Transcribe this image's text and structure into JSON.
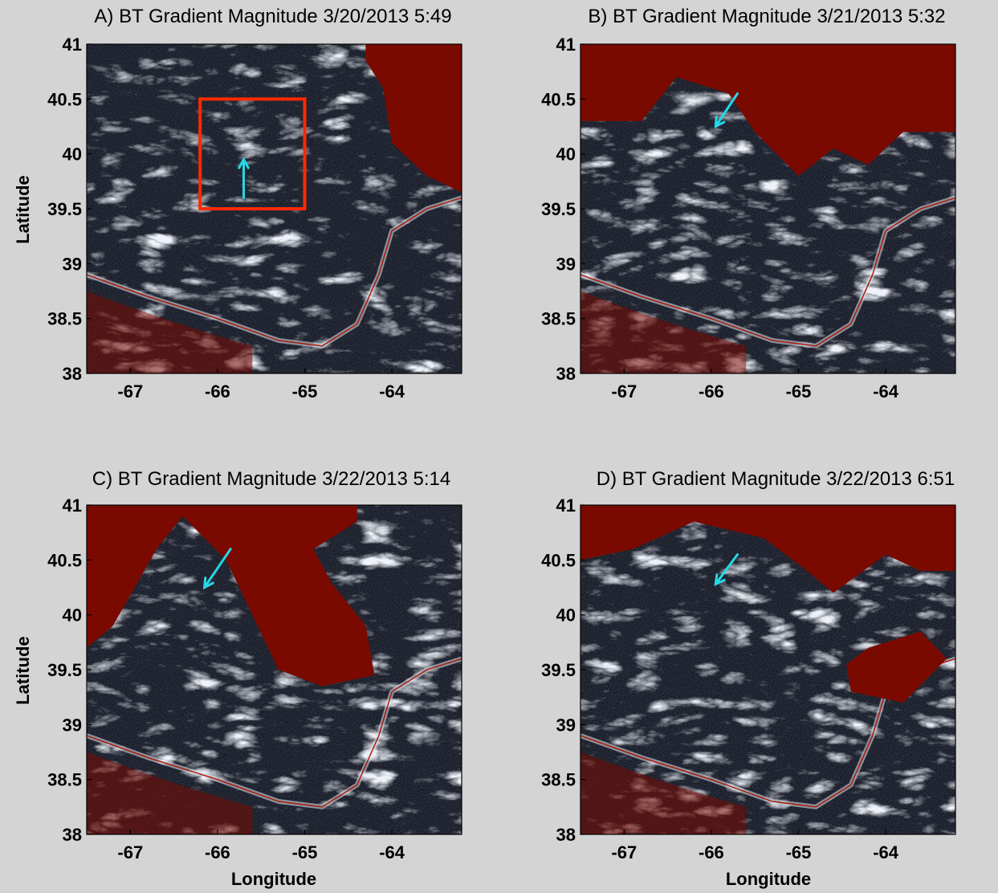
{
  "figure": {
    "background": "#d4d4d4",
    "colors": {
      "land_mask": "#7a0a00",
      "gradient_dark": "#161a26",
      "gradient_mid": "#5a6478",
      "gradient_light": "#dde6f2",
      "front_contour": "#b01400",
      "box_outline": "#ff2a00",
      "arrow": "#27d8e6"
    }
  },
  "chart_data": [
    {
      "type": "heatmap",
      "panel": "A",
      "title": "A) BT Gradient Magnitude 3/20/2013 5:49",
      "xlabel": "",
      "ylabel": "Latitude",
      "xlim": [
        -67.5,
        -63.2
      ],
      "ylim": [
        38,
        41
      ],
      "xticks": [
        -67,
        -66,
        -65,
        -64
      ],
      "yticks": [
        38,
        38.5,
        39,
        39.5,
        40,
        40.5,
        41
      ],
      "land_polygon": [
        [
          -66.3,
          41
        ],
        [
          -64.3,
          41
        ],
        [
          -64.3,
          40.85
        ],
        [
          -64.1,
          40.6
        ],
        [
          -64.0,
          40.1
        ],
        [
          -63.6,
          39.8
        ],
        [
          -63.2,
          39.65
        ],
        [
          -63.2,
          41
        ]
      ],
      "region_box": {
        "lon": [
          -66.2,
          -65.0
        ],
        "lat": [
          39.5,
          40.5
        ]
      },
      "arrow": {
        "from": [
          -65.7,
          39.6
        ],
        "to": [
          -65.7,
          39.95
        ]
      }
    },
    {
      "type": "heatmap",
      "panel": "B",
      "title": "B) BT Gradient Magnitude 3/21/2013 5:32",
      "xlabel": "",
      "ylabel": "",
      "xlim": [
        -67.5,
        -63.2
      ],
      "ylim": [
        38,
        41
      ],
      "xticks": [
        -67,
        -66,
        -65,
        -64
      ],
      "yticks": [
        38,
        38.5,
        39,
        39.5,
        40,
        40.5,
        41
      ],
      "land_polygon": [
        [
          -67.5,
          41
        ],
        [
          -63.2,
          41
        ],
        [
          -63.2,
          40.2
        ],
        [
          -63.8,
          40.2
        ],
        [
          -64.2,
          39.9
        ],
        [
          -64.6,
          40.05
        ],
        [
          -65.0,
          39.8
        ],
        [
          -65.5,
          40.2
        ],
        [
          -65.8,
          40.55
        ],
        [
          -66.4,
          40.7
        ],
        [
          -66.8,
          40.3
        ],
        [
          -67.5,
          40.3
        ]
      ],
      "arrow": {
        "from": [
          -65.7,
          40.55
        ],
        "to": [
          -65.95,
          40.25
        ]
      }
    },
    {
      "type": "heatmap",
      "panel": "C",
      "title": "C) BT Gradient Magnitude 3/22/2013 5:14",
      "xlabel": "Longitude",
      "ylabel": "Latitude",
      "xlim": [
        -67.5,
        -63.2
      ],
      "ylim": [
        38,
        41
      ],
      "xticks": [
        -67,
        -66,
        -65,
        -64
      ],
      "yticks": [
        38,
        38.5,
        39,
        39.5,
        40,
        40.5,
        41
      ],
      "land_polygon": [
        [
          -67.5,
          41
        ],
        [
          -64.4,
          41
        ],
        [
          -64.4,
          40.85
        ],
        [
          -64.9,
          40.6
        ],
        [
          -64.7,
          40.3
        ],
        [
          -64.3,
          39.9
        ],
        [
          -64.2,
          39.45
        ],
        [
          -64.8,
          39.35
        ],
        [
          -65.3,
          39.5
        ],
        [
          -65.6,
          40.0
        ],
        [
          -65.9,
          40.5
        ],
        [
          -66.4,
          40.9
        ],
        [
          -66.7,
          40.6
        ],
        [
          -67.2,
          39.9
        ],
        [
          -67.5,
          39.7
        ]
      ],
      "arrow": {
        "from": [
          -65.85,
          40.6
        ],
        "to": [
          -66.15,
          40.25
        ]
      }
    },
    {
      "type": "heatmap",
      "panel": "D",
      "title": "D) BT Gradient Magnitude 3/22/2013 6:51",
      "xlabel": "Longitude",
      "ylabel": "",
      "xlim": [
        -67.5,
        -63.2
      ],
      "ylim": [
        38,
        41
      ],
      "xticks": [
        -67,
        -66,
        -65,
        -64
      ],
      "yticks": [
        38,
        38.5,
        39,
        39.5,
        40,
        40.5,
        41
      ],
      "land_polygon": [
        [
          -67.5,
          41
        ],
        [
          -63.2,
          41
        ],
        [
          -63.2,
          40.4
        ],
        [
          -63.6,
          40.4
        ],
        [
          -64.0,
          40.55
        ],
        [
          -64.6,
          40.2
        ],
        [
          -64.9,
          40.4
        ],
        [
          -65.4,
          40.7
        ],
        [
          -66.2,
          40.85
        ],
        [
          -66.9,
          40.6
        ],
        [
          -67.5,
          40.5
        ]
      ],
      "extra_land": [
        [
          -64.2,
          39.7
        ],
        [
          -63.6,
          39.85
        ],
        [
          -63.3,
          39.6
        ],
        [
          -63.8,
          39.2
        ],
        [
          -64.4,
          39.3
        ],
        [
          -64.45,
          39.55
        ]
      ],
      "arrow": {
        "from": [
          -65.7,
          40.55
        ],
        "to": [
          -65.95,
          40.28
        ]
      }
    }
  ]
}
